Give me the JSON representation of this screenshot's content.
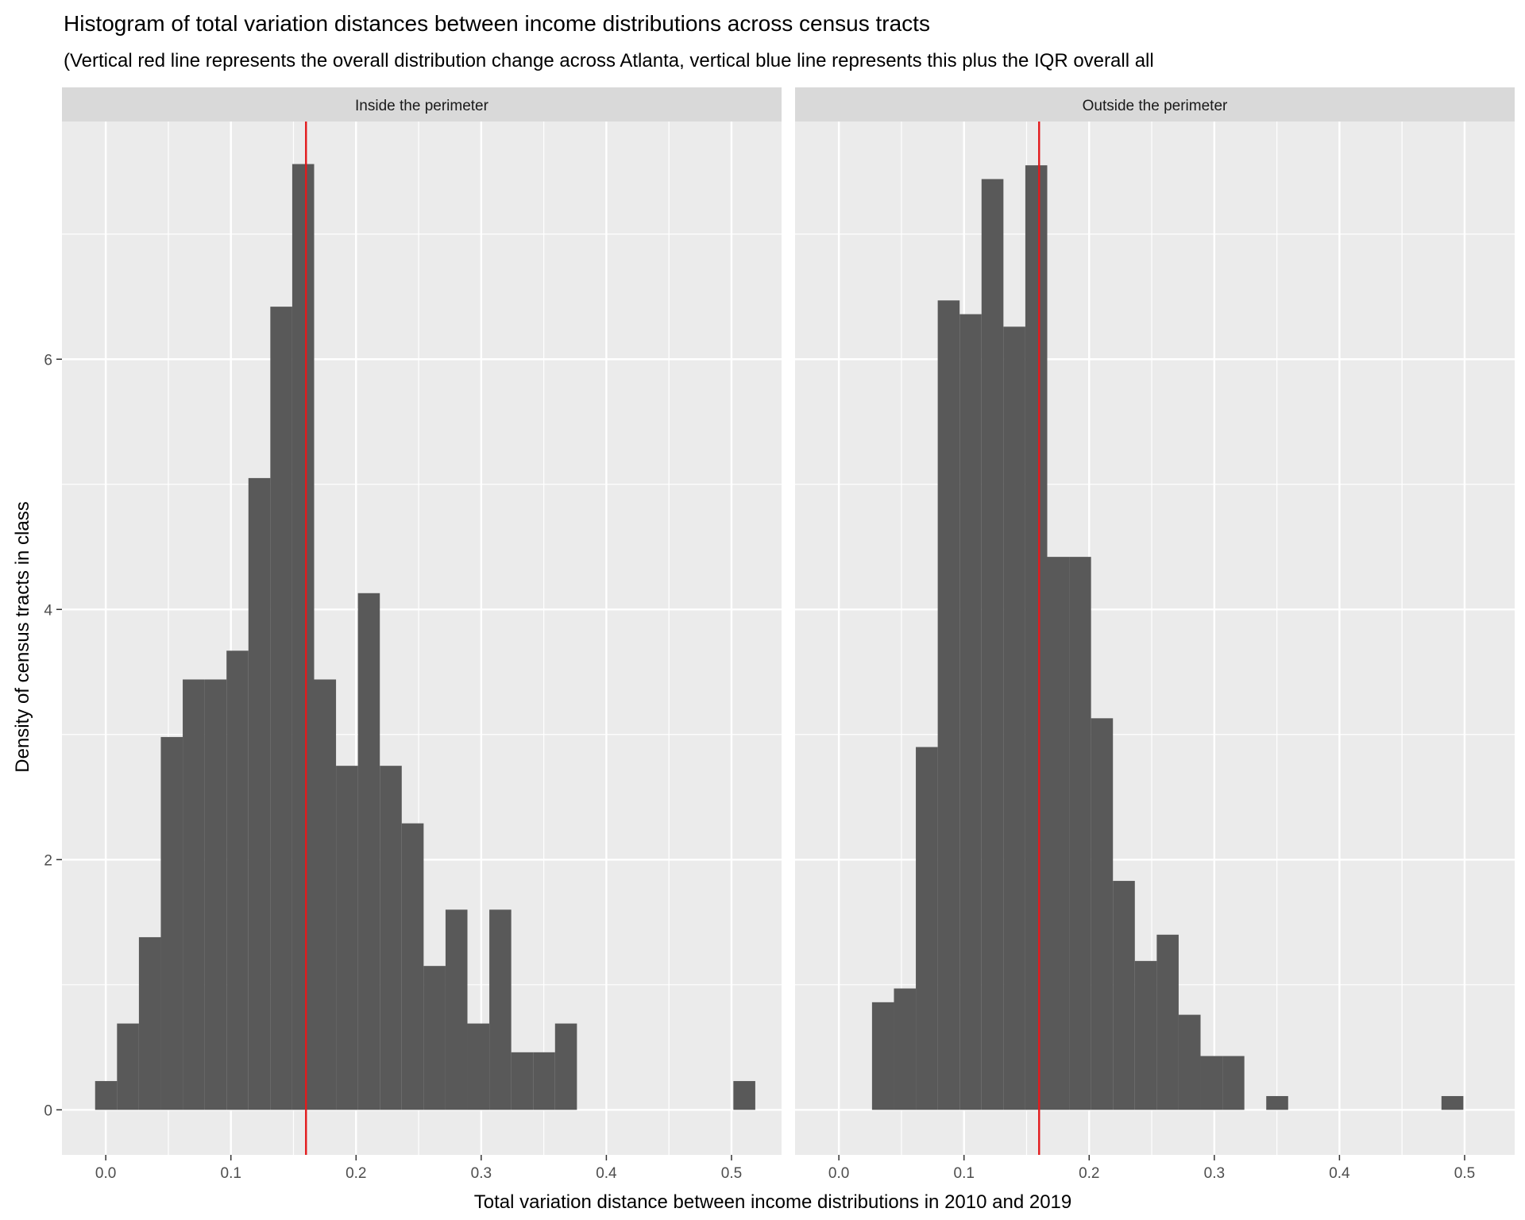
{
  "chart_data": {
    "type": "bar",
    "title": "Histogram of total variation distances between income distributions across census tracts",
    "subtitle": "(Vertical red line represents the overall distribution change across Atlanta, vertical blue line represents this plus the IQR overall all",
    "xlabel": "Total variation distance between income distributions in 2010 and 2019",
    "ylabel": "Density of census tracts in class",
    "xlim": [
      -0.035,
      0.54
    ],
    "ylim": [
      -0.36,
      7.9
    ],
    "x_ticks": [
      0.0,
      0.1,
      0.2,
      0.3,
      0.4,
      0.5
    ],
    "x_tick_labels": [
      "0.0",
      "0.1",
      "0.2",
      "0.3",
      "0.4",
      "0.5"
    ],
    "y_ticks": [
      0,
      2,
      4,
      6
    ],
    "y_tick_labels": [
      "0",
      "2",
      "4",
      "6"
    ],
    "grid": true,
    "bin_width": 0.0175,
    "bar_color": "#595959",
    "panel_bg": "#ebebeb",
    "strip_bg": "#d9d9d9",
    "reference_line": {
      "x": 0.16,
      "color": "#e31a1c"
    },
    "panels": [
      {
        "label": "Inside the perimeter",
        "bins": [
          {
            "x0": -0.0085,
            "x1": 0.009,
            "y": 0.23
          },
          {
            "x0": 0.009,
            "x1": 0.0265,
            "y": 0.69
          },
          {
            "x0": 0.0265,
            "x1": 0.044,
            "y": 1.38
          },
          {
            "x0": 0.044,
            "x1": 0.0615,
            "y": 2.98
          },
          {
            "x0": 0.0615,
            "x1": 0.079,
            "y": 3.44
          },
          {
            "x0": 0.079,
            "x1": 0.0965,
            "y": 3.44
          },
          {
            "x0": 0.0965,
            "x1": 0.114,
            "y": 3.67
          },
          {
            "x0": 0.114,
            "x1": 0.1315,
            "y": 5.05
          },
          {
            "x0": 0.1315,
            "x1": 0.149,
            "y": 6.42
          },
          {
            "x0": 0.149,
            "x1": 0.1665,
            "y": 7.56
          },
          {
            "x0": 0.1665,
            "x1": 0.184,
            "y": 3.44
          },
          {
            "x0": 0.184,
            "x1": 0.2015,
            "y": 2.75
          },
          {
            "x0": 0.2015,
            "x1": 0.219,
            "y": 4.13
          },
          {
            "x0": 0.219,
            "x1": 0.2365,
            "y": 2.75
          },
          {
            "x0": 0.2365,
            "x1": 0.254,
            "y": 2.29
          },
          {
            "x0": 0.254,
            "x1": 0.2715,
            "y": 1.15
          },
          {
            "x0": 0.2715,
            "x1": 0.289,
            "y": 1.6
          },
          {
            "x0": 0.289,
            "x1": 0.3065,
            "y": 0.69
          },
          {
            "x0": 0.3065,
            "x1": 0.324,
            "y": 1.6
          },
          {
            "x0": 0.324,
            "x1": 0.3415,
            "y": 0.46
          },
          {
            "x0": 0.3415,
            "x1": 0.359,
            "y": 0.46
          },
          {
            "x0": 0.359,
            "x1": 0.3765,
            "y": 0.69
          },
          {
            "x0": 0.5015,
            "x1": 0.519,
            "y": 0.23
          }
        ]
      },
      {
        "label": "Outside the perimeter",
        "bins": [
          {
            "x0": 0.0265,
            "x1": 0.044,
            "y": 0.86
          },
          {
            "x0": 0.044,
            "x1": 0.0615,
            "y": 0.97
          },
          {
            "x0": 0.0615,
            "x1": 0.079,
            "y": 2.9
          },
          {
            "x0": 0.079,
            "x1": 0.0965,
            "y": 6.47
          },
          {
            "x0": 0.0965,
            "x1": 0.114,
            "y": 6.36
          },
          {
            "x0": 0.114,
            "x1": 0.1315,
            "y": 7.44
          },
          {
            "x0": 0.1315,
            "x1": 0.149,
            "y": 6.26
          },
          {
            "x0": 0.149,
            "x1": 0.1665,
            "y": 7.55
          },
          {
            "x0": 0.1665,
            "x1": 0.184,
            "y": 4.42
          },
          {
            "x0": 0.184,
            "x1": 0.2015,
            "y": 4.42
          },
          {
            "x0": 0.2015,
            "x1": 0.219,
            "y": 3.13
          },
          {
            "x0": 0.219,
            "x1": 0.2365,
            "y": 1.83
          },
          {
            "x0": 0.2365,
            "x1": 0.254,
            "y": 1.19
          },
          {
            "x0": 0.254,
            "x1": 0.2715,
            "y": 1.4
          },
          {
            "x0": 0.2715,
            "x1": 0.289,
            "y": 0.76
          },
          {
            "x0": 0.289,
            "x1": 0.3065,
            "y": 0.43
          },
          {
            "x0": 0.3065,
            "x1": 0.324,
            "y": 0.43
          },
          {
            "x0": 0.3415,
            "x1": 0.359,
            "y": 0.11
          },
          {
            "x0": 0.4815,
            "x1": 0.499,
            "y": 0.11
          }
        ]
      }
    ]
  }
}
